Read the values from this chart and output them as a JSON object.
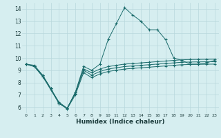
{
  "title": "",
  "xlabel": "Humidex (Indice chaleur)",
  "ylabel": "",
  "bg_color": "#d6eef0",
  "grid_color": "#b8d8dc",
  "line_color": "#1a6b6b",
  "x_ticks": [
    0,
    1,
    2,
    3,
    4,
    5,
    6,
    7,
    8,
    9,
    10,
    11,
    12,
    13,
    14,
    15,
    16,
    17,
    18,
    19,
    20,
    21,
    22,
    23
  ],
  "y_ticks": [
    6,
    7,
    8,
    9,
    10,
    11,
    12,
    13,
    14
  ],
  "ylim": [
    5.5,
    14.5
  ],
  "xlim": [
    -0.5,
    23.5
  ],
  "series": [
    {
      "x": [
        0,
        1,
        2,
        3,
        4,
        5,
        6,
        7,
        8,
        9,
        10,
        11,
        12,
        13,
        14,
        15,
        16,
        17,
        18,
        19,
        20,
        21,
        22,
        23
      ],
      "y": [
        9.5,
        9.4,
        8.6,
        7.5,
        6.3,
        5.9,
        7.2,
        9.3,
        9.0,
        9.5,
        11.5,
        12.8,
        14.1,
        13.5,
        13.0,
        12.3,
        12.3,
        11.5,
        10.0,
        9.8,
        9.5,
        9.5,
        9.6,
        9.8
      ]
    },
    {
      "x": [
        0,
        1,
        2,
        3,
        4,
        5,
        6,
        7,
        8,
        9,
        10,
        11,
        12,
        13,
        14,
        15,
        16,
        17,
        18,
        19,
        20,
        21,
        22,
        23
      ],
      "y": [
        9.5,
        9.3,
        8.6,
        7.5,
        6.3,
        5.9,
        7.2,
        9.1,
        8.8,
        9.1,
        9.3,
        9.4,
        9.5,
        9.55,
        9.6,
        9.65,
        9.7,
        9.75,
        9.8,
        9.85,
        9.87,
        9.88,
        9.89,
        9.9
      ]
    },
    {
      "x": [
        0,
        1,
        2,
        3,
        4,
        5,
        6,
        7,
        8,
        9,
        10,
        11,
        12,
        13,
        14,
        15,
        16,
        17,
        18,
        19,
        20,
        21,
        22,
        23
      ],
      "y": [
        9.5,
        9.3,
        8.5,
        7.5,
        6.4,
        5.9,
        7.1,
        9.0,
        8.6,
        8.9,
        9.1,
        9.2,
        9.3,
        9.35,
        9.4,
        9.45,
        9.5,
        9.55,
        9.6,
        9.65,
        9.67,
        9.68,
        9.69,
        9.7
      ]
    },
    {
      "x": [
        0,
        1,
        2,
        3,
        4,
        5,
        6,
        7,
        8,
        9,
        10,
        11,
        12,
        13,
        14,
        15,
        16,
        17,
        18,
        19,
        20,
        21,
        22,
        23
      ],
      "y": [
        9.5,
        9.3,
        8.5,
        7.4,
        6.3,
        5.85,
        7.0,
        8.8,
        8.4,
        8.7,
        8.9,
        9.0,
        9.1,
        9.15,
        9.2,
        9.25,
        9.3,
        9.35,
        9.4,
        9.45,
        9.47,
        9.48,
        9.49,
        9.5
      ]
    }
  ]
}
